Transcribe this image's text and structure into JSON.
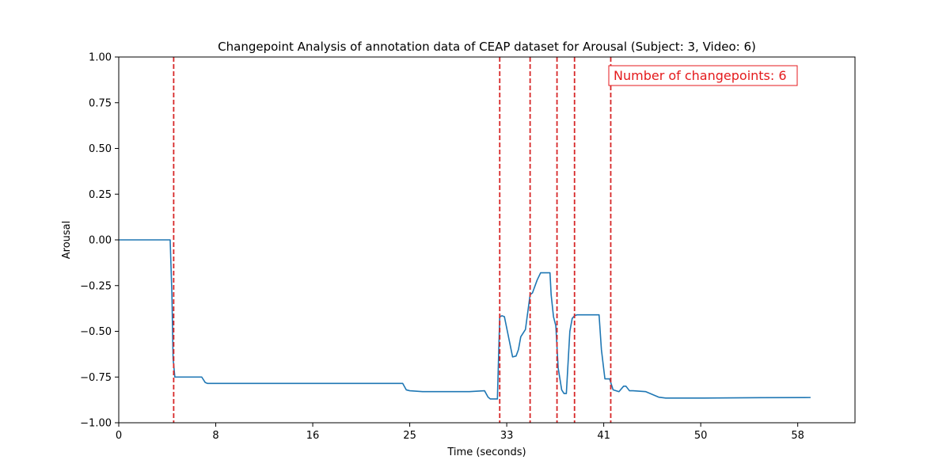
{
  "chart_data": {
    "type": "line",
    "title": "Changepoint Analysis of annotation data of CEAP dataset for Arousal (Subject: 3, Video: 6)",
    "xlabel": "Time (seconds)",
    "ylabel": "Arousal",
    "xlim": [
      0,
      63
    ],
    "ylim": [
      -1.0,
      1.0
    ],
    "x_ticks": [
      0,
      8.3,
      16.6,
      24.9,
      33.2,
      41.5,
      49.8,
      58.1
    ],
    "x_tick_labels": [
      "0",
      "8",
      "16",
      "25",
      "33",
      "41",
      "50",
      "58"
    ],
    "y_ticks": [
      -1.0,
      -0.75,
      -0.5,
      -0.25,
      0.0,
      0.25,
      0.5,
      0.75,
      1.0
    ],
    "y_tick_labels": [
      "−1.00",
      "−0.75",
      "−0.50",
      "−0.25",
      "0.00",
      "0.25",
      "0.50",
      "0.75",
      "1.00"
    ],
    "grid": false,
    "series": [
      {
        "color": "#1f77b4",
        "x": [
          0,
          4.4,
          4.55,
          4.65,
          4.8,
          5.2,
          7.1,
          7.4,
          7.6,
          8.5,
          12,
          16,
          20,
          24.3,
          24.6,
          24.9,
          26,
          28,
          30,
          31.3,
          31.6,
          31.8,
          32.4,
          32.6,
          32.8,
          33.0,
          33.7,
          34.0,
          34.2,
          34.4,
          34.8,
          35.2,
          35.4,
          35.8,
          36.1,
          36.4,
          36.9,
          37.0,
          37.2,
          37.4,
          37.6,
          37.9,
          38.1,
          38.3,
          38.6,
          38.8,
          39.0,
          39.2,
          41.1,
          41.3,
          41.6,
          42.0,
          42.3,
          42.8,
          43.2,
          43.4,
          43.7,
          44.0,
          45.1,
          46.2,
          46.8,
          50,
          55,
          59.2
        ],
        "y": [
          0.0,
          0.0,
          -0.3,
          -0.65,
          -0.75,
          -0.75,
          -0.75,
          -0.78,
          -0.785,
          -0.785,
          -0.785,
          -0.785,
          -0.785,
          -0.785,
          -0.82,
          -0.825,
          -0.83,
          -0.83,
          -0.83,
          -0.825,
          -0.86,
          -0.87,
          -0.87,
          -0.42,
          -0.415,
          -0.42,
          -0.64,
          -0.635,
          -0.6,
          -0.53,
          -0.49,
          -0.3,
          -0.29,
          -0.22,
          -0.18,
          -0.18,
          -0.18,
          -0.3,
          -0.42,
          -0.47,
          -0.7,
          -0.82,
          -0.84,
          -0.84,
          -0.5,
          -0.43,
          -0.415,
          -0.41,
          -0.41,
          -0.6,
          -0.76,
          -0.76,
          -0.82,
          -0.83,
          -0.8,
          -0.8,
          -0.825,
          -0.825,
          -0.83,
          -0.86,
          -0.865,
          -0.865,
          -0.863,
          -0.862
        ]
      }
    ],
    "changepoints": [
      4.7,
      32.6,
      35.2,
      37.5,
      39.0,
      42.1
    ],
    "changepoint_color": "#d62728",
    "annotation": {
      "text": "Number of changepoints: 6",
      "color": "#e41a1c"
    }
  }
}
